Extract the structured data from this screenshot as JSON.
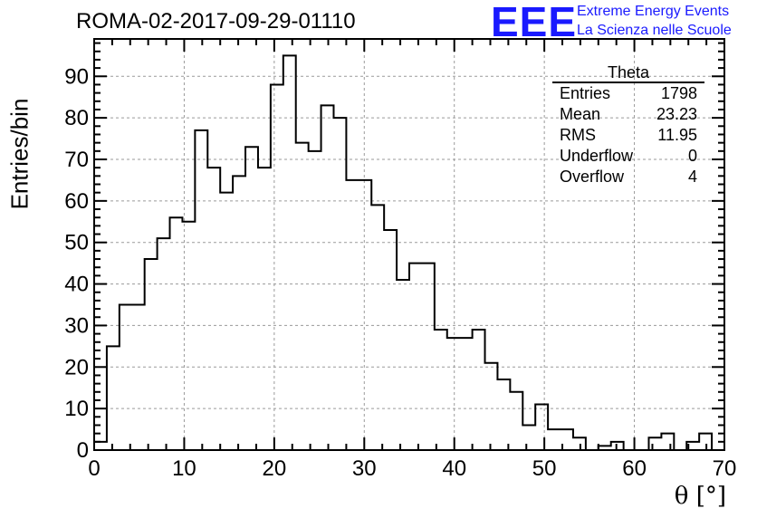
{
  "header": {
    "run_title": "ROMA-02-2017-09-29-01110",
    "logo_text": "EEE",
    "logo_line1": "Extreme Energy Events",
    "logo_line2": "La Scienza nelle Scuole",
    "logo_color": "#1a1aff"
  },
  "stats": {
    "title": "Theta",
    "rows": [
      {
        "label": "Entries",
        "value": "1798"
      },
      {
        "label": "Mean",
        "value": "23.23"
      },
      {
        "label": "RMS",
        "value": "11.95"
      },
      {
        "label": "Underflow",
        "value": "0"
      },
      {
        "label": "Overflow",
        "value": "4"
      }
    ]
  },
  "chart_data": {
    "type": "histogram",
    "title": "ROMA-02-2017-09-29-01110",
    "xlabel": "θ [°]",
    "ylabel": "Entries/bin",
    "xlim": [
      0,
      70
    ],
    "ylim": [
      0,
      99
    ],
    "bin_width": 1.4,
    "xticks": [
      0,
      10,
      20,
      30,
      40,
      50,
      60,
      70
    ],
    "yticks": [
      0,
      10,
      20,
      30,
      40,
      50,
      60,
      70,
      80,
      90
    ],
    "grid": true,
    "values": [
      2,
      25,
      35,
      35,
      46,
      51,
      56,
      55,
      77,
      68,
      62,
      66,
      73,
      68,
      88,
      95,
      74,
      72,
      83,
      80,
      65,
      65,
      59,
      53,
      41,
      45,
      45,
      29,
      27,
      27,
      29,
      21,
      17,
      14,
      6,
      11,
      5,
      5,
      3,
      0,
      1,
      2,
      0,
      0,
      3,
      4,
      0,
      2,
      4,
      0
    ],
    "line_color": "#000000"
  }
}
